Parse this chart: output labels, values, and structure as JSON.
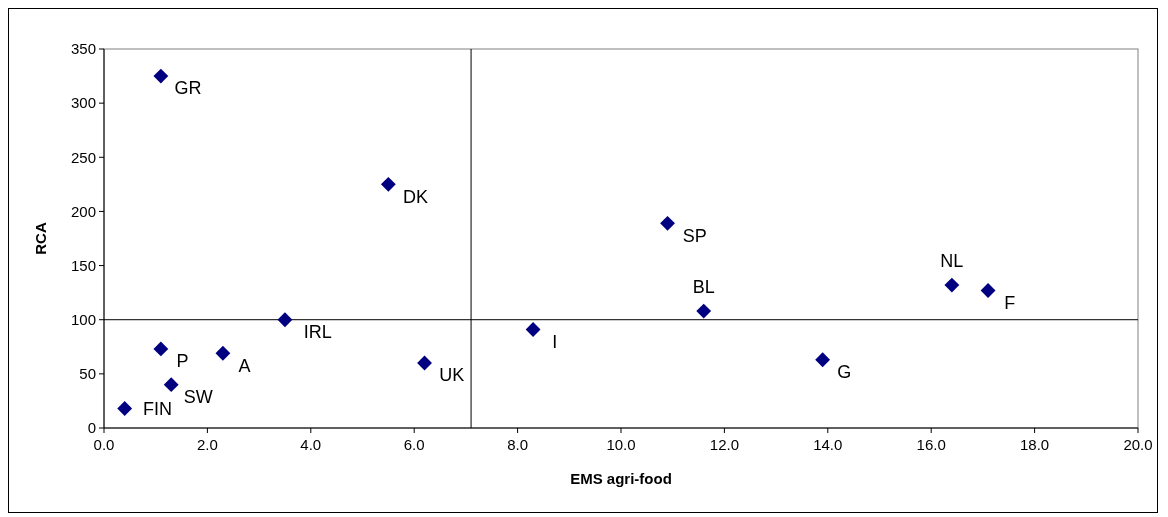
{
  "chart_data": {
    "type": "scatter",
    "xlabel": "EMS agri-food",
    "ylabel": "RCA",
    "marker": "diamond",
    "grid": false,
    "xlim": [
      0,
      20
    ],
    "xticks": [
      {
        "value": 0,
        "label": "0.0"
      },
      {
        "value": 2,
        "label": "2.0"
      },
      {
        "value": 4,
        "label": "4.0"
      },
      {
        "value": 6,
        "label": "6.0"
      },
      {
        "value": 8,
        "label": "8.0"
      },
      {
        "value": 10,
        "label": "10.0"
      },
      {
        "value": 12,
        "label": "12.0"
      },
      {
        "value": 14,
        "label": "14.0"
      },
      {
        "value": 16,
        "label": "16.0"
      },
      {
        "value": 18,
        "label": "18.0"
      },
      {
        "value": 20,
        "label": "20.0"
      }
    ],
    "ylim": [
      0,
      350
    ],
    "yticks": [
      0,
      50,
      100,
      150,
      200,
      250,
      300,
      350
    ],
    "series": [
      {
        "color": "#000080",
        "x": [
          1.1,
          5.5,
          10.9,
          16.4,
          17.1,
          11.6,
          3.5,
          8.3,
          1.1,
          2.3,
          6.2,
          13.9,
          1.3,
          0.4
        ],
        "values": [
          325,
          225,
          189,
          132,
          127,
          108,
          100,
          91,
          73,
          69,
          60,
          63,
          40,
          18
        ]
      }
    ],
    "ref_lines": [
      {
        "axis": "x",
        "value": 7.1,
        "color": "#000000"
      },
      {
        "axis": "y",
        "value": 100,
        "color": "#000000"
      }
    ],
    "annotations": [
      {
        "text": "GR",
        "x": 1.1,
        "y": 325
      },
      {
        "text": "DK",
        "x": 5.5,
        "y": 225
      },
      {
        "text": "SP",
        "x": 10.9,
        "y": 189
      },
      {
        "text": "NL",
        "x": 16.4,
        "y": 132
      },
      {
        "text": "F",
        "x": 17.1,
        "y": 127
      },
      {
        "text": "BL",
        "x": 11.6,
        "y": 108
      },
      {
        "text": "IRL",
        "x": 3.5,
        "y": 100
      },
      {
        "text": "I",
        "x": 8.3,
        "y": 91
      },
      {
        "text": "P",
        "x": 1.1,
        "y": 73
      },
      {
        "text": "A",
        "x": 2.3,
        "y": 69
      },
      {
        "text": "UK",
        "x": 6.2,
        "y": 60
      },
      {
        "text": "G",
        "x": 13.9,
        "y": 63
      },
      {
        "text": "SW",
        "x": 1.3,
        "y": 40
      },
      {
        "text": "FIN",
        "x": 0.4,
        "y": 18
      }
    ]
  }
}
